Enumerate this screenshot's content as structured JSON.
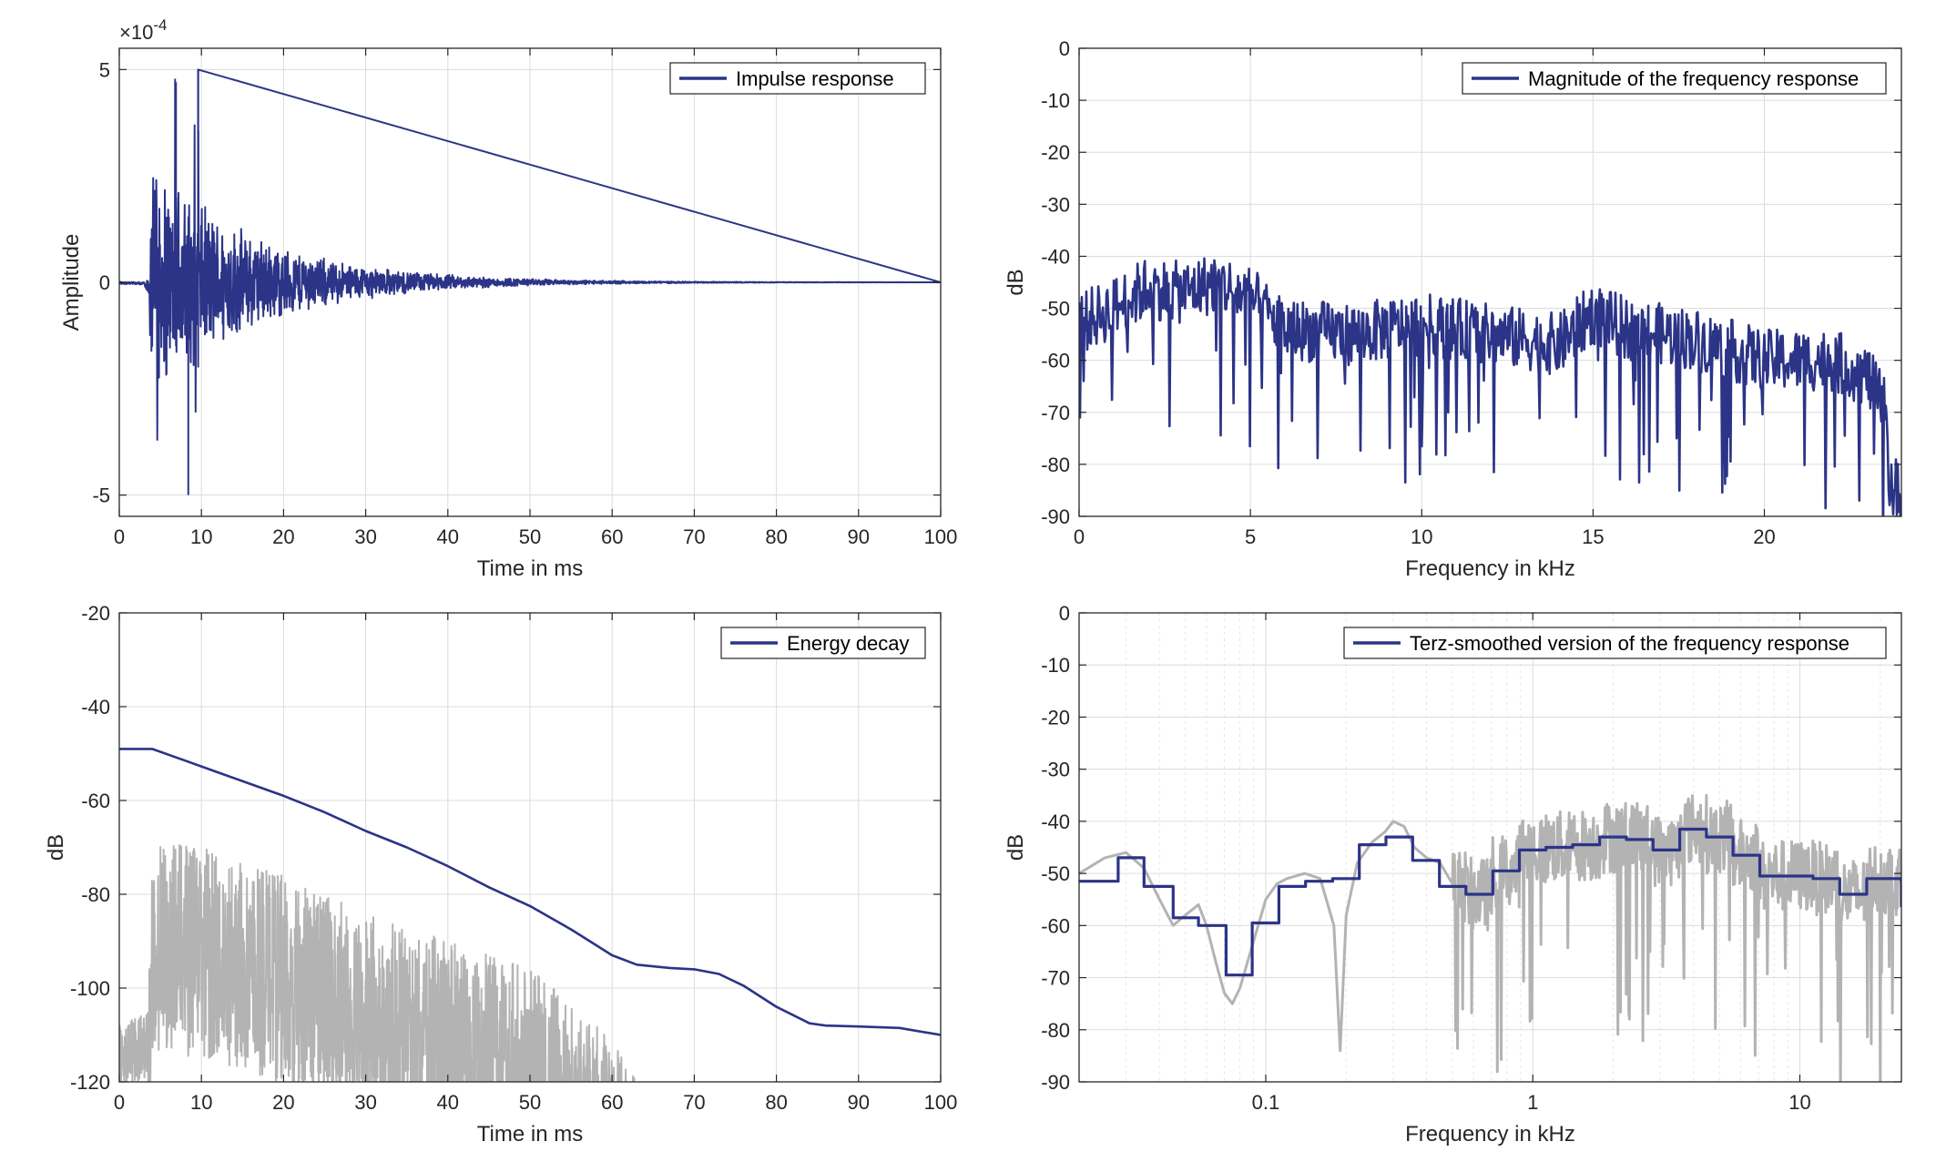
{
  "colors": {
    "main_series": "#2b3487",
    "gray_series": "#b3b3b3",
    "grid": "#dcdcdc",
    "axis": "#262626"
  },
  "chart_data": [
    {
      "id": "impulse",
      "type": "line",
      "title": "",
      "xlabel": "Time in ms",
      "ylabel": "Amplitude",
      "y_exponent_label": "×10",
      "y_exponent_value": "-4",
      "xlim": [
        0,
        100
      ],
      "ylim": [
        -5.5,
        5.5
      ],
      "xticks": [
        0,
        10,
        20,
        30,
        40,
        50,
        60,
        70,
        80,
        90,
        100
      ],
      "yticks": [
        -5,
        0,
        5
      ],
      "grid": true,
      "legend_position": "top-right",
      "series": [
        {
          "name": "Impulse response",
          "color": "#2b3487",
          "onset_ms": 3.7,
          "peak_max": 5.0,
          "peak_min": -5.0,
          "decay_end_ms": 55
        }
      ]
    },
    {
      "id": "magnitude",
      "type": "line",
      "title": "",
      "xlabel": "Frequency in kHz",
      "ylabel": "dB",
      "xlim": [
        0,
        24
      ],
      "ylim": [
        -90,
        0
      ],
      "xticks": [
        0,
        5,
        10,
        15,
        20
      ],
      "yticks": [
        0,
        -10,
        -20,
        -30,
        -40,
        -50,
        -60,
        -70,
        -80,
        -90
      ],
      "grid": true,
      "legend_position": "top-right",
      "series": [
        {
          "name": "Magnitude of the frequency response",
          "color": "#2b3487",
          "envelope_x": [
            0,
            1,
            2,
            3,
            4,
            5,
            6,
            8,
            10,
            12,
            14,
            15,
            16,
            18,
            20,
            22,
            23,
            24
          ],
          "envelope_y": [
            -53,
            -50,
            -46,
            -47,
            -45,
            -48,
            -54,
            -55,
            -53,
            -55,
            -57,
            -51,
            -54,
            -56,
            -60,
            -60,
            -63,
            -75
          ]
        }
      ]
    },
    {
      "id": "energy",
      "type": "line",
      "title": "",
      "xlabel": "Time in ms",
      "ylabel": "dB",
      "xlim": [
        0,
        100
      ],
      "ylim": [
        -120,
        -20
      ],
      "xticks": [
        0,
        10,
        20,
        30,
        40,
        50,
        60,
        70,
        80,
        90,
        100
      ],
      "yticks": [
        -20,
        -40,
        -60,
        -80,
        -100,
        -120
      ],
      "grid": true,
      "legend_position": "top-right",
      "series": [
        {
          "name": "Energy decay",
          "color": "#2b3487",
          "x": [
            0,
            4,
            8,
            12,
            16,
            20,
            25,
            30,
            35,
            40,
            45,
            50,
            55,
            60,
            63,
            67,
            70,
            73,
            76,
            80,
            84,
            86,
            90,
            95,
            100
          ],
          "y": [
            -49,
            -49,
            -51.5,
            -54,
            -56.5,
            -59,
            -62.5,
            -66.5,
            -70,
            -74,
            -78.5,
            -82.5,
            -87.5,
            -93,
            -95,
            -95.7,
            -96,
            -97,
            -99.5,
            -104,
            -107.5,
            -108,
            -108.2,
            -108.5,
            -110
          ]
        },
        {
          "name": "",
          "color": "#b3b3b3",
          "envelope_x": [
            0,
            3.5,
            4,
            5,
            10,
            20,
            30,
            40,
            50,
            60,
            63
          ],
          "envelope_y": [
            -108,
            -105,
            -70,
            -69,
            -70,
            -76,
            -84,
            -90,
            -96,
            -110,
            -120
          ]
        }
      ]
    },
    {
      "id": "terz",
      "type": "line",
      "title": "",
      "xlabel": "Frequency in kHz",
      "ylabel": "dB",
      "xscale": "log",
      "xlim": [
        0.02,
        24
      ],
      "ylim": [
        -90,
        0
      ],
      "xticks": [
        0.1,
        1,
        10
      ],
      "xticklabels": [
        "0.1",
        "1",
        "10"
      ],
      "yticks": [
        0,
        -10,
        -20,
        -30,
        -40,
        -50,
        -60,
        -70,
        -80,
        -90
      ],
      "grid": true,
      "legend_position": "top-right",
      "series": [
        {
          "name": "Terz-smoothed version of the frequency response",
          "color": "#2b3487",
          "step_edges": [
            0.02,
            0.028,
            0.035,
            0.045,
            0.056,
            0.071,
            0.089,
            0.112,
            0.141,
            0.178,
            0.224,
            0.282,
            0.355,
            0.447,
            0.562,
            0.708,
            0.891,
            1.12,
            1.41,
            1.78,
            2.24,
            2.82,
            3.55,
            4.47,
            5.62,
            7.08,
            8.91,
            11.2,
            14.1,
            17.8,
            24
          ],
          "step_values": [
            -51.5,
            -47,
            -52.5,
            -58.5,
            -60,
            -69.5,
            -59.5,
            -52.5,
            -51.5,
            -51,
            -44.5,
            -43,
            -47.5,
            -52.5,
            -54,
            -49.5,
            -45.5,
            -45,
            -44.5,
            -43,
            -43.5,
            -45.5,
            -41.5,
            -43,
            -46.5,
            -50.5,
            -50.5,
            -51,
            -54,
            -51,
            -56.5
          ]
        },
        {
          "name": "",
          "color": "#b3b3b3",
          "x": [
            0.02,
            0.025,
            0.03,
            0.035,
            0.04,
            0.045,
            0.05,
            0.056,
            0.06,
            0.065,
            0.07,
            0.075,
            0.08,
            0.09,
            0.1,
            0.11,
            0.12,
            0.14,
            0.16,
            0.18,
            0.19,
            0.2,
            0.22,
            0.25,
            0.28,
            0.3,
            0.33,
            0.36,
            0.4,
            0.45,
            0.5
          ],
          "y": [
            -50,
            -47,
            -46,
            -49,
            -55,
            -60,
            -58,
            -56,
            -60,
            -67,
            -73,
            -75,
            -72,
            -63,
            -55,
            -52,
            -51,
            -50,
            -51,
            -60,
            -84,
            -58,
            -48,
            -44,
            -42,
            -40,
            -41,
            -45,
            -47,
            -48,
            -52
          ]
        }
      ]
    }
  ]
}
